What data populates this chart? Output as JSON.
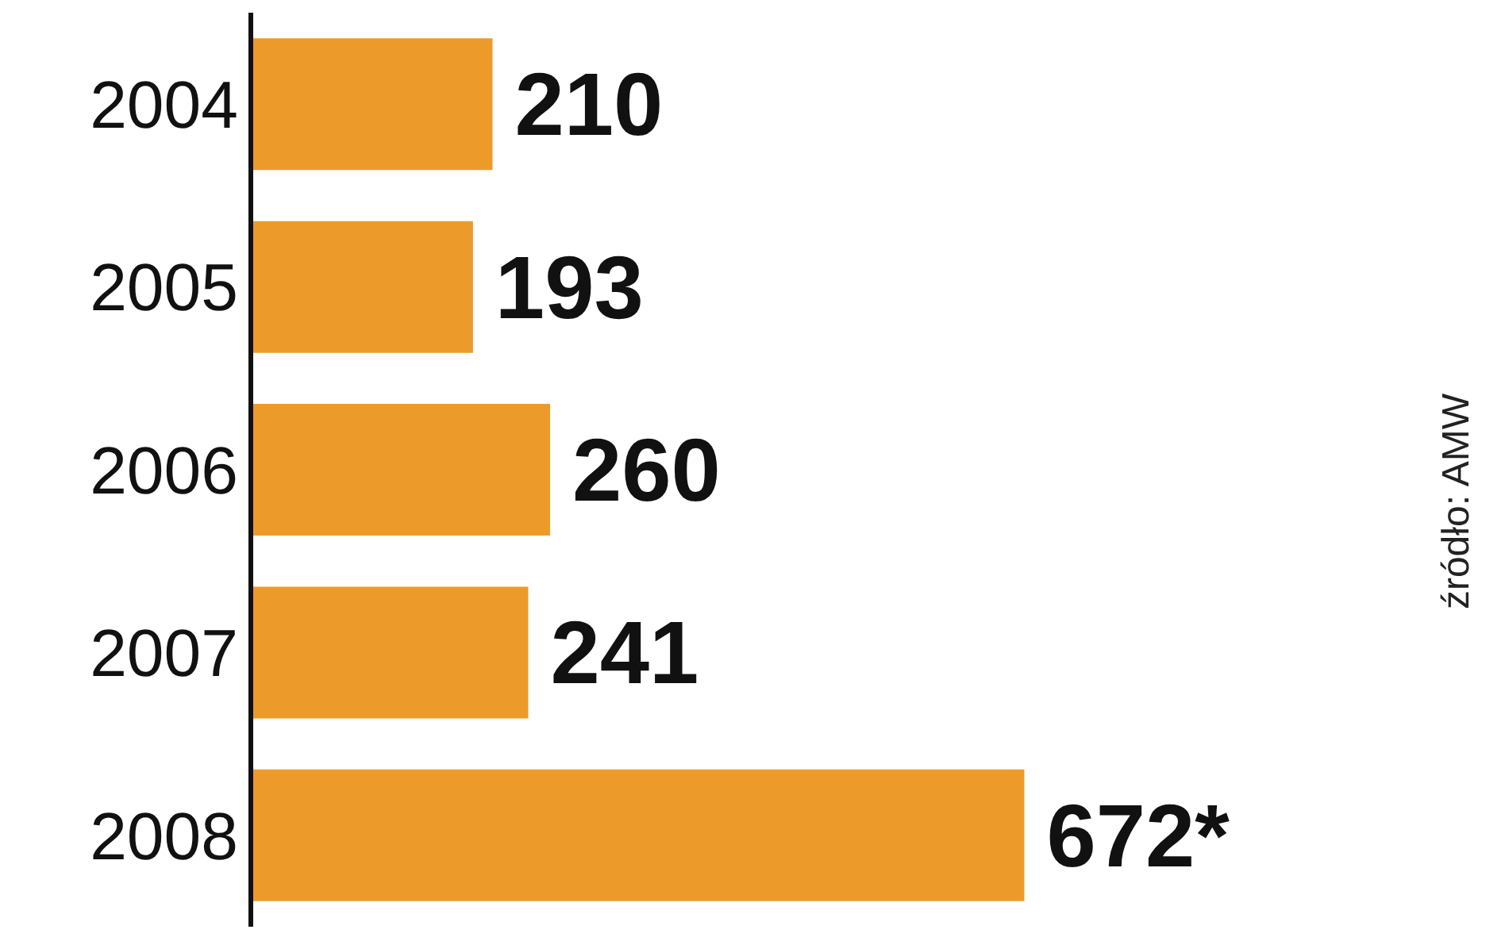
{
  "chart_data": {
    "type": "bar",
    "orientation": "horizontal",
    "categories": [
      "2004",
      "2005",
      "2006",
      "2007",
      "2008"
    ],
    "values": [
      210,
      193,
      260,
      241,
      672
    ],
    "value_labels": [
      "210",
      "193",
      "260",
      "241",
      "672*"
    ],
    "color": "#ec9b2b",
    "tick_labels": "y",
    "annotations": [
      "źródło: AMW"
    ]
  }
}
